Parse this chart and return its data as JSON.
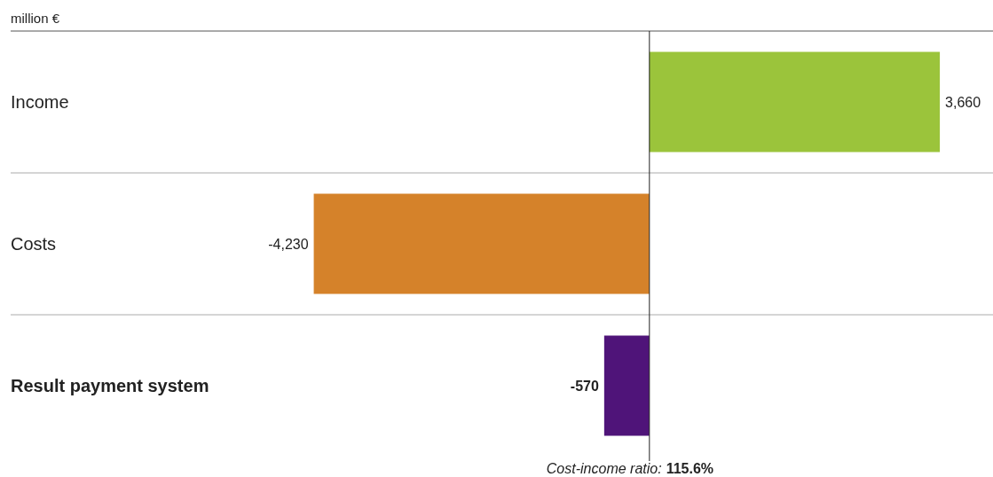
{
  "chart_data": {
    "type": "bar",
    "orientation": "horizontal",
    "xlabel": "million €",
    "categories": [
      "Income",
      "Costs",
      "Result payment system"
    ],
    "values": [
      3660,
      -4230,
      -570
    ],
    "colors": [
      "#9bc43b",
      "#d5822a",
      "#4f1479"
    ],
    "value_labels": [
      "3,660",
      "-4,230",
      "-570"
    ],
    "xlim": [
      -8050,
      4330
    ],
    "annotations": [
      "Cost-income ratio:",
      "115.6%"
    ]
  }
}
